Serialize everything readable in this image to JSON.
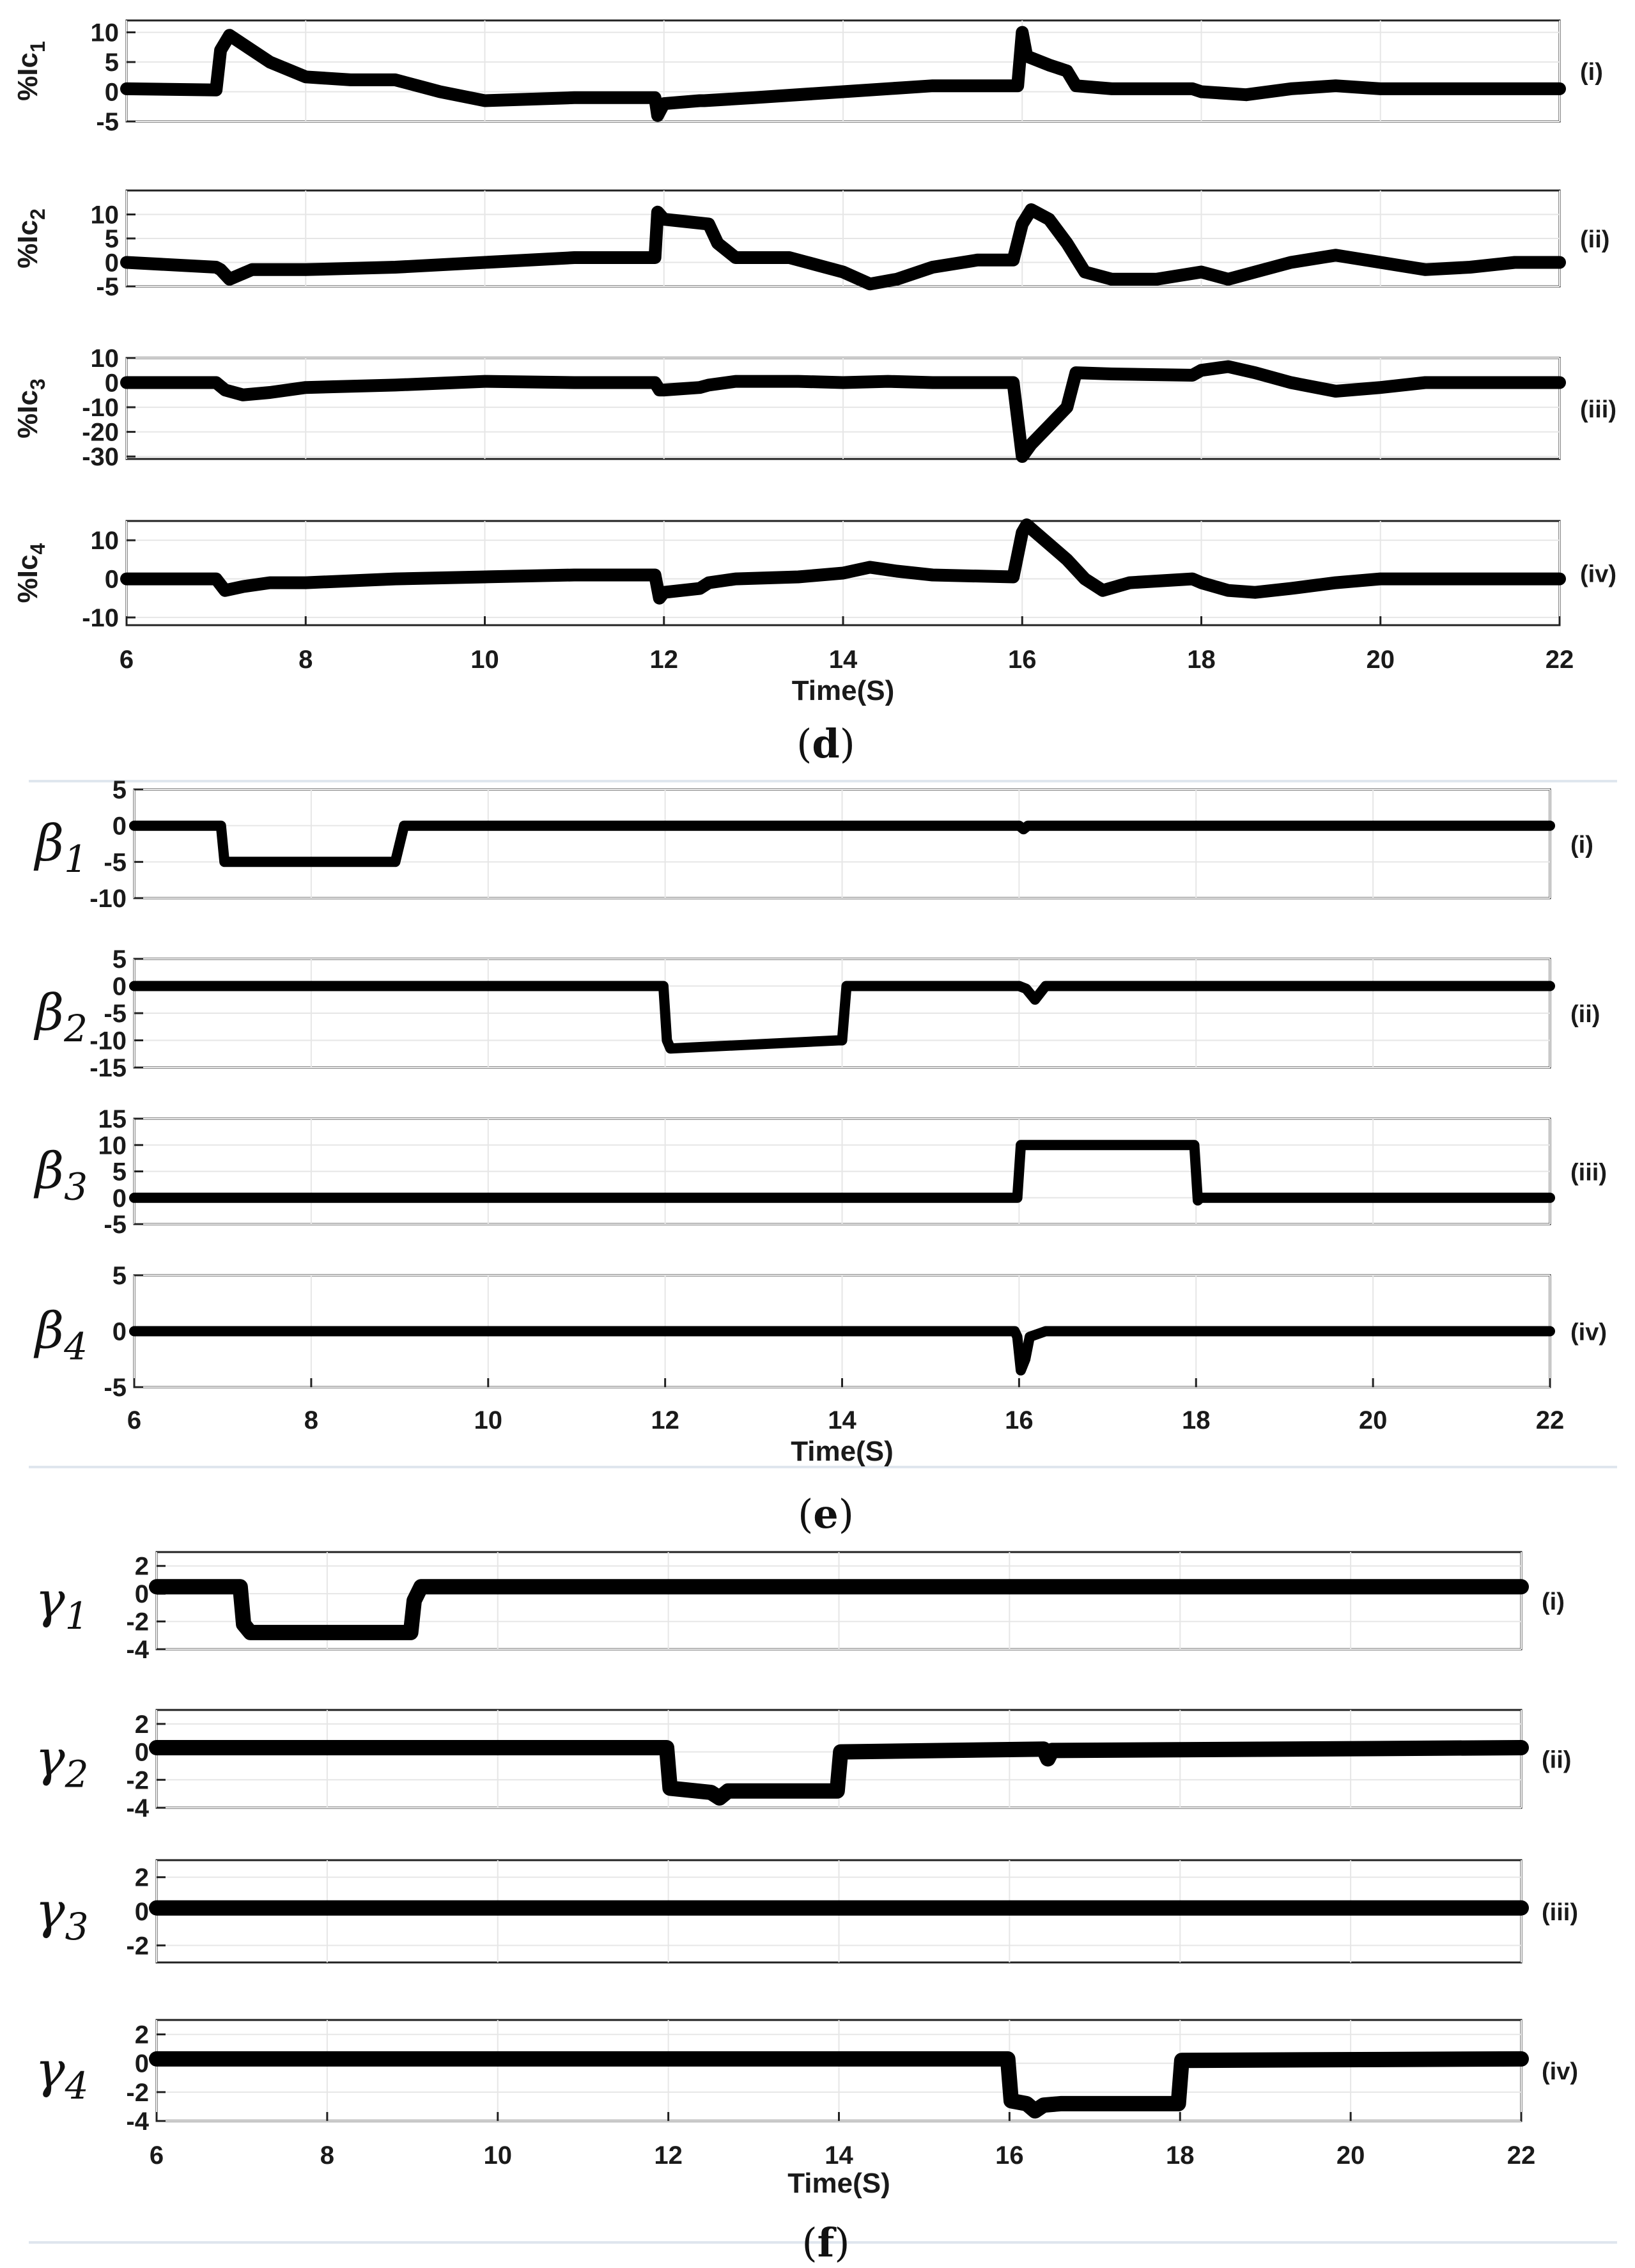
{
  "chart_data": [
    {
      "type": "line",
      "caption": "d",
      "xlabel": "Time(S)",
      "xlim": [
        6,
        22
      ],
      "xticks": [
        6,
        8,
        10,
        12,
        14,
        16,
        18,
        20,
        22
      ],
      "grid": true,
      "panels": [
        {
          "ylabel_text": "%Ic",
          "ylabel_sub": "1",
          "label": "(i)",
          "ylim": [
            -5,
            12
          ],
          "yticks": [
            10,
            5,
            0,
            -5
          ],
          "series": [
            {
              "x": [
                6,
                7.0,
                7.05,
                7.15,
                7.3,
                7.6,
                8.0,
                8.5,
                9.0,
                9.5,
                10.0,
                11.0,
                11.9,
                11.93,
                12.0,
                12.4,
                12.45,
                13.0,
                14.0,
                15.0,
                15.95,
                16.0,
                16.05,
                16.3,
                16.5,
                16.6,
                17.0,
                17.9,
                18.0,
                18.5,
                19.0,
                19.5,
                20.0,
                21.0,
                22.0
              ],
              "y": [
                0.5,
                0.3,
                7.0,
                9.5,
                8.0,
                5.0,
                2.5,
                2.0,
                2.0,
                0.0,
                -1.5,
                -1.0,
                -1.0,
                -4.0,
                -2.0,
                -1.5,
                -1.5,
                -1.0,
                0.0,
                1.0,
                1.0,
                10.0,
                6.0,
                4.5,
                3.5,
                1.0,
                0.5,
                0.5,
                0.0,
                -0.5,
                0.5,
                1.0,
                0.5,
                0.5,
                0.5
              ]
            }
          ]
        },
        {
          "ylabel_text": "%Ic",
          "ylabel_sub": "2",
          "label": "(ii)",
          "ylim": [
            -5,
            15
          ],
          "yticks": [
            10,
            5,
            0,
            -5
          ],
          "series": [
            {
              "x": [
                6,
                7.0,
                7.05,
                7.15,
                7.4,
                8.0,
                9.0,
                10.0,
                11.0,
                11.9,
                11.93,
                12.0,
                12.5,
                12.6,
                12.8,
                13.4,
                13.6,
                14.0,
                14.3,
                14.6,
                15.0,
                15.5,
                15.9,
                16.0,
                16.1,
                16.3,
                16.5,
                16.7,
                17.0,
                17.5,
                18.0,
                18.3,
                18.6,
                19.0,
                19.5,
                20.0,
                20.5,
                21.0,
                21.5,
                22.0
              ],
              "y": [
                0,
                -1.0,
                -1.5,
                -3.5,
                -1.5,
                -1.5,
                -1.0,
                0.0,
                1.0,
                1.0,
                10.5,
                9.0,
                8.0,
                4.0,
                1.0,
                1.0,
                0.0,
                -2.0,
                -4.5,
                -3.5,
                -1.0,
                0.5,
                0.5,
                8.0,
                11.0,
                9.0,
                4.0,
                -2.0,
                -3.5,
                -3.5,
                -2.0,
                -3.5,
                -2.0,
                0.0,
                1.5,
                0.0,
                -1.5,
                -1.0,
                0.0,
                0.0
              ]
            }
          ]
        },
        {
          "ylabel_text": "%Ic",
          "ylabel_sub": "3",
          "label": "(iii)",
          "ylim": [
            -31,
            10
          ],
          "yticks": [
            10,
            0,
            -10,
            -20,
            -30
          ],
          "series": [
            {
              "x": [
                6,
                7.0,
                7.1,
                7.3,
                7.6,
                8.0,
                9.0,
                10.0,
                11.0,
                11.9,
                11.95,
                12.0,
                12.4,
                12.5,
                12.8,
                13.5,
                14.0,
                14.5,
                15.0,
                15.9,
                16.0,
                16.1,
                16.5,
                16.6,
                17.0,
                17.9,
                18.0,
                18.3,
                18.6,
                19.0,
                19.5,
                20.0,
                20.5,
                21.0,
                22.0
              ],
              "y": [
                0,
                0,
                -3.0,
                -5.0,
                -4.0,
                -2.0,
                -1.0,
                0.5,
                0.0,
                0.0,
                -3.0,
                -3.0,
                -2.0,
                -1.0,
                0.5,
                0.5,
                0.0,
                0.5,
                0.0,
                0.0,
                -30.0,
                -25.0,
                -10.0,
                4.0,
                3.5,
                3.0,
                5.0,
                6.5,
                4.0,
                0.0,
                -3.5,
                -2.0,
                0.0,
                0.0,
                0.0
              ]
            }
          ]
        },
        {
          "ylabel_text": "%Ic",
          "ylabel_sub": "4",
          "label": "(iv)",
          "ylim": [
            -12,
            15
          ],
          "yticks": [
            10,
            0,
            -10
          ],
          "series": [
            {
              "x": [
                6,
                7.0,
                7.1,
                7.3,
                7.6,
                8.0,
                9.0,
                10.0,
                11.0,
                11.9,
                11.95,
                12.0,
                12.4,
                12.5,
                12.8,
                13.5,
                14.0,
                14.3,
                14.6,
                15.0,
                15.9,
                16.0,
                16.05,
                16.3,
                16.5,
                16.7,
                16.9,
                17.2,
                17.9,
                18.0,
                18.3,
                18.6,
                19.0,
                19.5,
                20.0,
                20.5,
                21.0,
                22.0
              ],
              "y": [
                0,
                0,
                -3.0,
                -2.0,
                -1.0,
                -1.0,
                0.0,
                0.5,
                1.0,
                1.0,
                -5.0,
                -3.5,
                -2.5,
                -1.0,
                0.0,
                0.5,
                1.5,
                3.0,
                2.0,
                1.0,
                0.5,
                12.0,
                14.0,
                9.0,
                5.0,
                0.0,
                -3.0,
                -1.0,
                0.0,
                -1.0,
                -3.0,
                -3.5,
                -2.5,
                -1.0,
                0.0,
                0.0,
                0.0,
                0.0
              ]
            }
          ]
        }
      ]
    },
    {
      "type": "line",
      "caption": "e",
      "xlabel": "Time(S)",
      "xlim": [
        6,
        22
      ],
      "xticks": [
        6,
        8,
        10,
        12,
        14,
        16,
        18,
        20,
        22
      ],
      "grid": true,
      "panels": [
        {
          "ylabel_symbol": "β",
          "ylabel_sub": "1",
          "label": "(i)",
          "ylim": [
            -10,
            5
          ],
          "yticks": [
            5,
            0,
            -5,
            -10
          ],
          "series": [
            {
              "x": [
                6,
                6.98,
                7.02,
                8.9,
                8.95,
                9.05,
                16.0,
                16.05,
                16.1,
                22.0
              ],
              "y": [
                0,
                0,
                -5,
                -5,
                -5,
                0,
                0,
                -0.5,
                0,
                0
              ]
            }
          ]
        },
        {
          "ylabel_symbol": "β",
          "ylabel_sub": "2",
          "label": "(ii)",
          "ylim": [
            -15,
            5
          ],
          "yticks": [
            5,
            0,
            -5,
            -10,
            -15
          ],
          "series": [
            {
              "x": [
                6,
                11.98,
                12.02,
                12.06,
                13.96,
                14.0,
                14.05,
                16.0,
                16.08,
                16.18,
                16.3,
                22.0
              ],
              "y": [
                0,
                0,
                -10,
                -11.5,
                -10,
                -10,
                0,
                0,
                -0.5,
                -2.5,
                0,
                0
              ]
            }
          ]
        },
        {
          "ylabel_symbol": "β",
          "ylabel_sub": "3",
          "label": "(iii)",
          "ylim": [
            -5,
            15
          ],
          "yticks": [
            15,
            10,
            5,
            0,
            -5
          ],
          "series": [
            {
              "x": [
                6,
                15.98,
                16.02,
                17.98,
                18.02,
                18.05,
                22.0
              ],
              "y": [
                0,
                0,
                10,
                10,
                -0.5,
                0,
                0
              ]
            }
          ]
        },
        {
          "ylabel_symbol": "β",
          "ylabel_sub": "4",
          "label": "(iv)",
          "ylim": [
            -5,
            5
          ],
          "yticks": [
            5,
            0,
            -5
          ],
          "series": [
            {
              "x": [
                6,
                15.95,
                15.98,
                16.02,
                16.07,
                16.12,
                16.3,
                22.0
              ],
              "y": [
                0,
                0,
                -0.5,
                -3.5,
                -2.5,
                -0.5,
                0,
                0
              ]
            }
          ]
        }
      ]
    },
    {
      "type": "line",
      "caption": "f",
      "xlabel": "Time(S)",
      "xlim": [
        6,
        22
      ],
      "xticks": [
        6,
        8,
        10,
        12,
        14,
        16,
        18,
        20,
        22
      ],
      "grid": true,
      "panels": [
        {
          "ylabel_symbol": "γ",
          "ylabel_sub": "1",
          "label": "(i)",
          "ylim": [
            -4,
            3
          ],
          "yticks": [
            2,
            0,
            -2,
            -4
          ],
          "series": [
            {
              "x": [
                6,
                6.98,
                7.02,
                7.1,
                8.98,
                9.02,
                9.1,
                22.0
              ],
              "y": [
                0.5,
                0.5,
                -2.2,
                -2.8,
                -2.8,
                -0.5,
                0.5,
                0.5
              ]
            }
          ]
        },
        {
          "ylabel_symbol": "γ",
          "ylabel_sub": "2",
          "label": "(ii)",
          "ylim": [
            -4,
            3
          ],
          "yticks": [
            2,
            0,
            -2,
            -4
          ],
          "series": [
            {
              "x": [
                6,
                11.98,
                12.02,
                12.5,
                12.6,
                12.7,
                13.98,
                14.02,
                16.4,
                16.45,
                16.5,
                22.0
              ],
              "y": [
                0.3,
                0.3,
                -2.6,
                -2.9,
                -3.3,
                -2.8,
                -2.8,
                0.0,
                0.2,
                -0.5,
                0.1,
                0.3
              ]
            }
          ]
        },
        {
          "ylabel_symbol": "γ",
          "ylabel_sub": "3",
          "label": "(iii)",
          "ylim": [
            -3,
            3
          ],
          "yticks": [
            2,
            0,
            -2
          ],
          "series": [
            {
              "x": [
                6,
                22.0
              ],
              "y": [
                0.2,
                0.2
              ]
            }
          ]
        },
        {
          "ylabel_symbol": "γ",
          "ylabel_sub": "4",
          "label": "(iv)",
          "ylim": [
            -4,
            3
          ],
          "yticks": [
            2,
            0,
            -2,
            -4
          ],
          "series": [
            {
              "x": [
                6,
                15.98,
                16.02,
                16.2,
                16.3,
                16.4,
                16.6,
                17.98,
                18.02,
                22.0
              ],
              "y": [
                0.3,
                0.3,
                -2.6,
                -2.8,
                -3.3,
                -2.9,
                -2.8,
                -2.8,
                0.2,
                0.3
              ]
            }
          ]
        }
      ]
    }
  ]
}
